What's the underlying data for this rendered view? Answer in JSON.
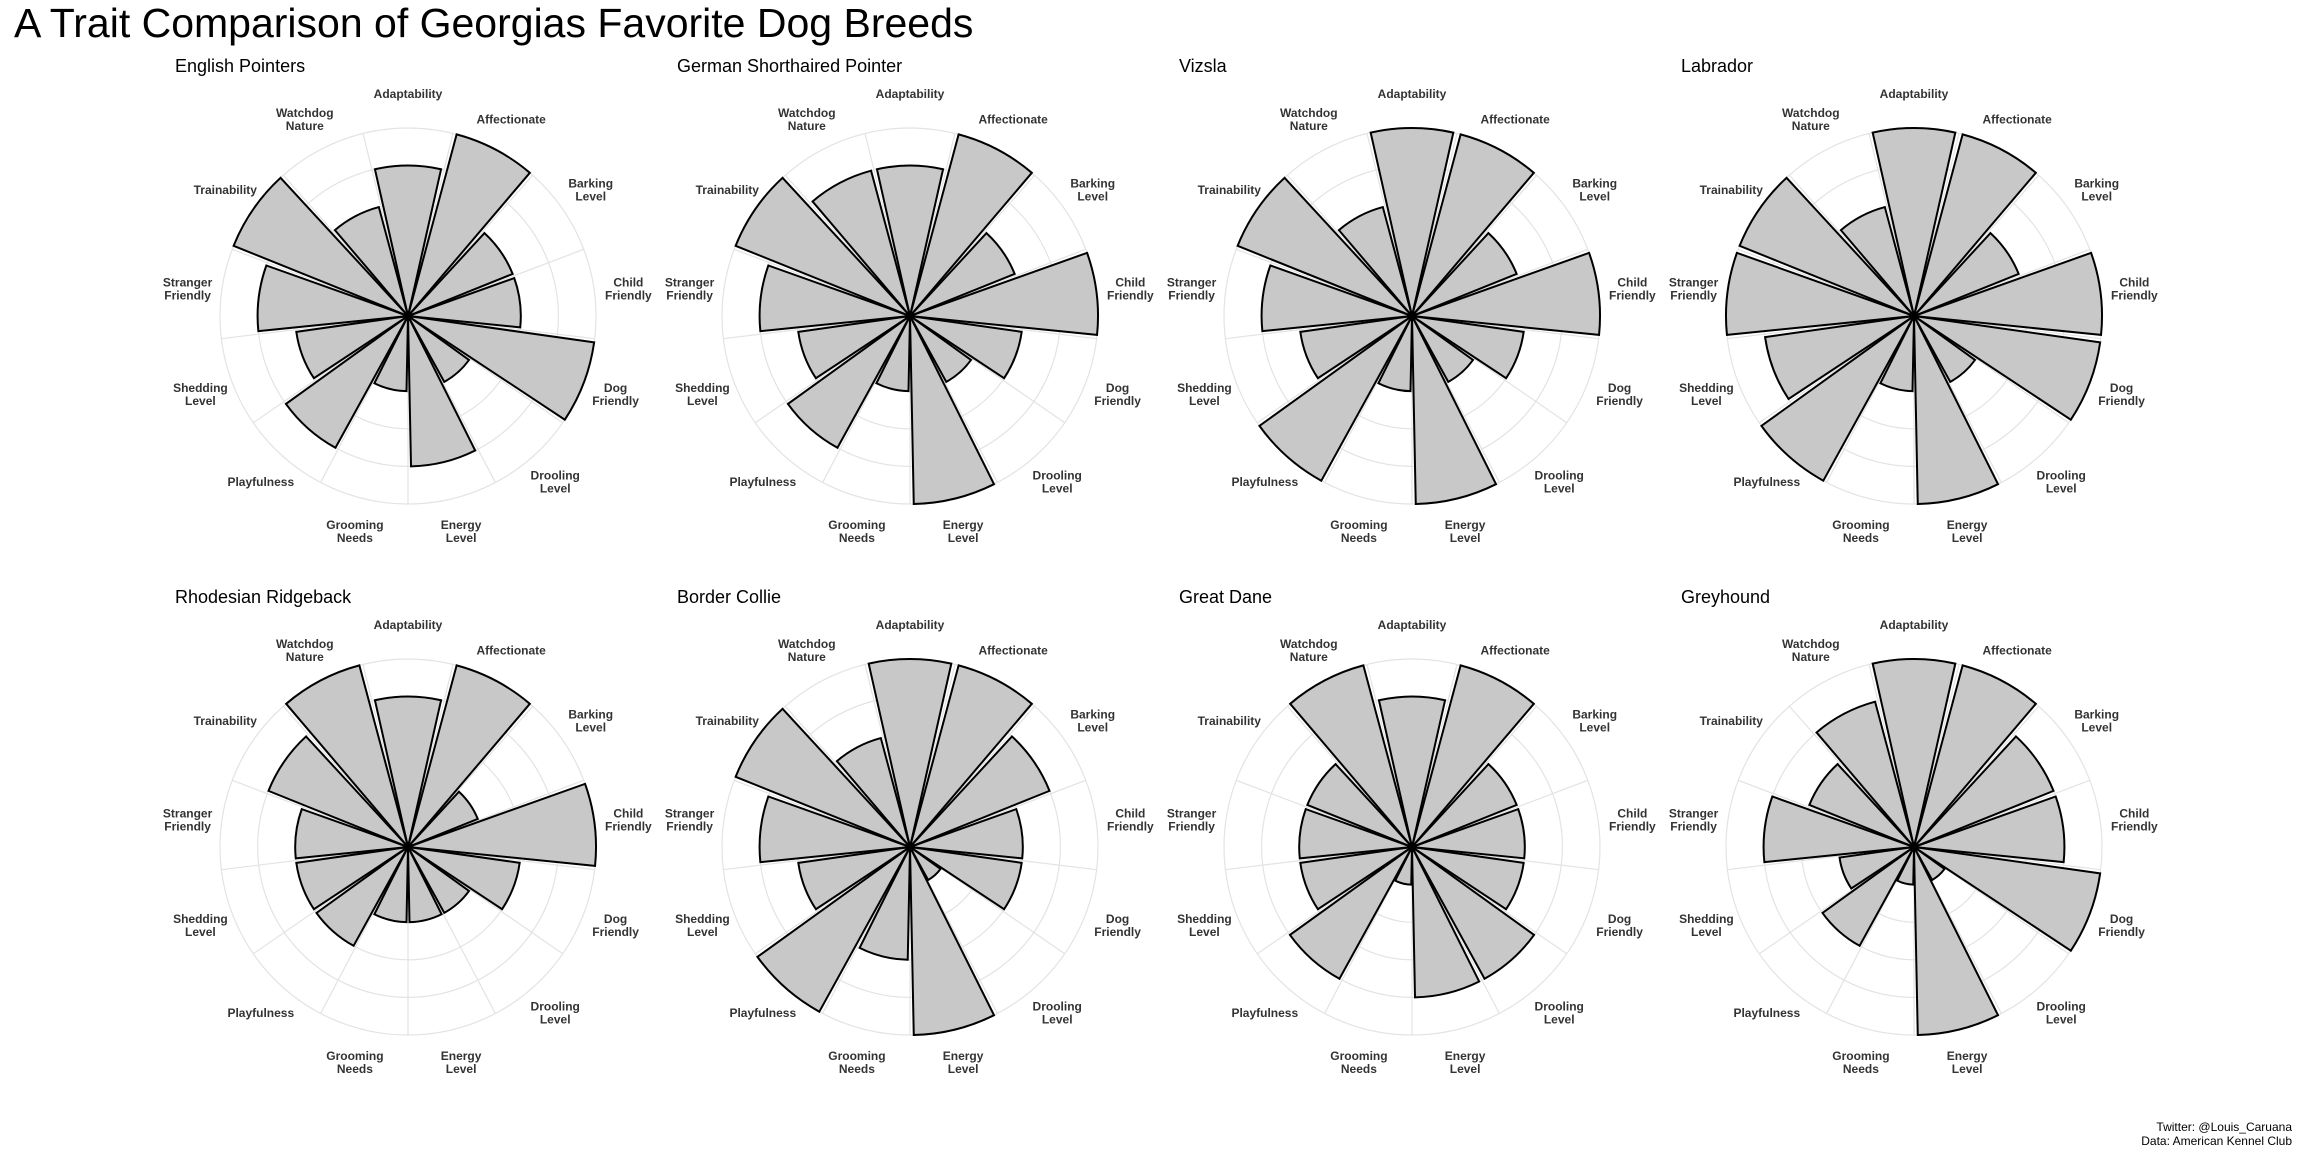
{
  "title": "A Trait Comparison of Georgias Favorite Dog Breeds",
  "footer": {
    "credit": "Twitter: @Louis_Caruana",
    "source": "Data: American Kennel Club"
  },
  "colors": {
    "bar_fill": "#c8c8c8",
    "bar_stroke": "#000000",
    "grid": "#e3e3e3"
  },
  "chart_data": {
    "type": "radial-bar",
    "scale": [
      0,
      5
    ],
    "grid": true,
    "traits": [
      [
        "Adaptability"
      ],
      [
        "Affectionate"
      ],
      [
        "Barking",
        "Level"
      ],
      [
        "Child",
        "Friendly"
      ],
      [
        "Dog",
        "Friendly"
      ],
      [
        "Drooling",
        "Level"
      ],
      [
        "Energy",
        "Level"
      ],
      [
        "Grooming",
        "Needs"
      ],
      [
        "Playfulness"
      ],
      [
        "Shedding",
        "Level"
      ],
      [
        "Stranger",
        "Friendly"
      ],
      [
        "Trainability"
      ],
      [
        "Watchdog",
        "Nature"
      ]
    ],
    "breeds": [
      {
        "name": "English Pointers",
        "values": [
          4,
          5,
          3,
          3,
          5,
          2,
          4,
          2,
          4,
          3,
          4,
          5,
          3
        ]
      },
      {
        "name": "German Shorthaired Pointer",
        "values": [
          4,
          5,
          3,
          5,
          3,
          2,
          5,
          2,
          4,
          3,
          4,
          5,
          4
        ]
      },
      {
        "name": "Vizsla",
        "values": [
          5,
          5,
          3,
          5,
          3,
          2,
          5,
          2,
          5,
          3,
          4,
          5,
          3
        ]
      },
      {
        "name": "Labrador",
        "values": [
          5,
          5,
          3,
          5,
          5,
          2,
          5,
          2,
          5,
          4,
          5,
          5,
          3
        ]
      },
      {
        "name": "Rhodesian Ridgeback",
        "values": [
          4,
          5,
          2,
          5,
          3,
          2,
          2,
          2,
          3,
          3,
          3,
          4,
          5
        ]
      },
      {
        "name": "Border Collie",
        "values": [
          5,
          5,
          4,
          3,
          3,
          1,
          5,
          3,
          5,
          3,
          4,
          5,
          3
        ]
      },
      {
        "name": "Great Dane",
        "values": [
          4,
          5,
          3,
          3,
          3,
          4,
          4,
          1,
          4,
          3,
          3,
          3,
          5
        ]
      },
      {
        "name": "Greyhound",
        "values": [
          5,
          5,
          4,
          4,
          5,
          1,
          5,
          1,
          3,
          2,
          4,
          3,
          4
        ]
      }
    ]
  }
}
